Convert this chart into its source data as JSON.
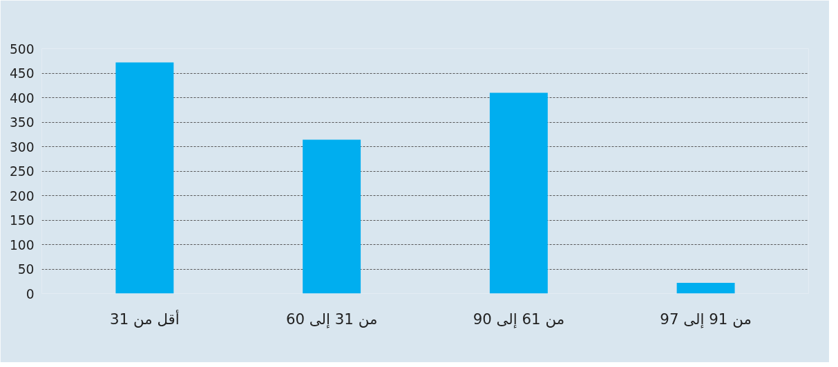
{
  "chart_data": {
    "type": "bar",
    "categories": [
      "أقل من 31",
      "من 31 إلى 60",
      "من 61 إلى 90",
      "من 91 إلى 97"
    ],
    "values": [
      472,
      314,
      410,
      22
    ],
    "color": "#00aeef",
    "ylim": [
      0,
      500
    ],
    "yticks": [
      0,
      50,
      100,
      150,
      200,
      250,
      300,
      350,
      400,
      450,
      500
    ],
    "grid": "y"
  }
}
